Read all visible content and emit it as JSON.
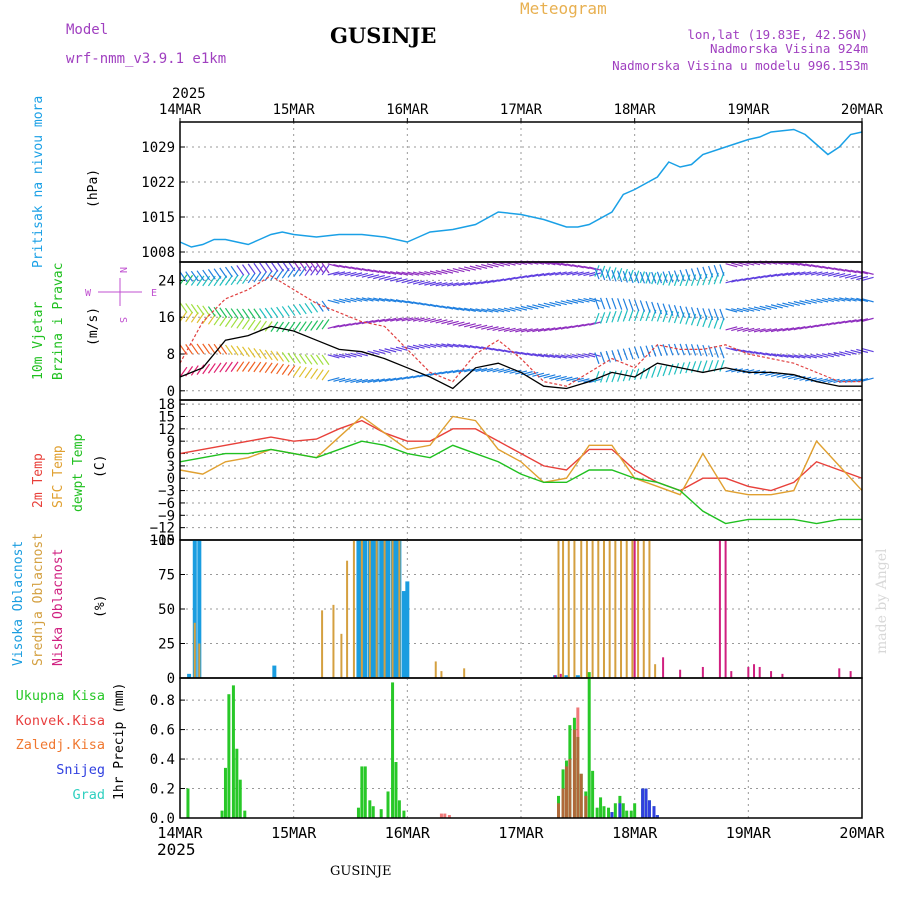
{
  "header": {
    "model_label": "Model",
    "model_name": "wrf-nmm_v3.9.1 e1km",
    "station": "GUSINJE",
    "product": "Meteogram",
    "coords": "lon,lat (19.83E, 42.56N)",
    "elevation": "Nadmorska Visina 924m",
    "model_elevation": "Nadmorska Visina u modelu 996.153m",
    "year": "2025",
    "footer_station": "GUSINJE",
    "watermark": "made by Angel"
  },
  "colors": {
    "pressure": "#1aa0e6",
    "temp2m": "#e8403a",
    "sfc": "#e0a030",
    "dewpt": "#20c020",
    "high_cloud": "#1a9de0",
    "mid_cloud": "#d4a040",
    "low_cloud": "#d02080",
    "total_precip": "#28c828",
    "conv_precip": "#e84040",
    "frz_precip": "#f07830",
    "snow": "#3040e0",
    "graupel": "#30d0c0"
  },
  "time_axis": {
    "labels": [
      "14MAR",
      "15MAR",
      "16MAR",
      "17MAR",
      "18MAR",
      "19MAR",
      "20MAR"
    ]
  },
  "panels": {
    "pressure": {
      "label": "Pritisak na nivou mora",
      "unit": "(hPa)"
    },
    "wind": {
      "label1": "10m Vjetar",
      "label2": "Brzina i Pravac",
      "unit": "(m/s)",
      "compass_n": "N",
      "compass_s": "S",
      "compass_w": "W",
      "compass_e": "E"
    },
    "temperature": {
      "label1": "2m Temp",
      "label2": "SFC Temp",
      "label3": "dewpt Temp",
      "unit": "(C)"
    },
    "cloud": {
      "label1": "Visoka Oblacnost",
      "label2": "Srednja Oblacnost",
      "label3": "Niska Oblacnost",
      "unit": "(%)"
    },
    "precip": {
      "labels": [
        "Ukupna Kisa",
        "Konvek.Kisa",
        "Zaledj.Kisa",
        "Snijeg",
        "Grad"
      ],
      "unit": "1hr Precip (mm)"
    }
  },
  "chart_data": [
    {
      "type": "line",
      "name": "pressure",
      "ylim": [
        1006,
        1034
      ],
      "ticks": [
        1008,
        1015,
        1022,
        1029
      ],
      "series": [
        {
          "x": [
            0,
            0.1,
            0.2,
            0.3,
            0.4,
            0.5,
            0.6,
            0.7,
            0.8,
            0.9,
            1.0,
            1.2,
            1.4,
            1.6,
            1.8,
            2.0,
            2.1,
            2.2,
            2.4,
            2.6,
            2.8,
            3.0,
            3.2,
            3.4,
            3.5,
            3.6,
            3.8,
            3.9,
            4.0,
            4.2,
            4.3,
            4.4,
            4.5,
            4.6,
            4.8,
            5.0,
            5.1,
            5.2,
            5.4,
            5.5,
            5.6,
            5.7,
            5.8,
            5.9,
            6.0
          ],
          "y": [
            1010,
            1009,
            1009.5,
            1010.5,
            1010.5,
            1010,
            1009.5,
            1010.5,
            1011.5,
            1012,
            1011.5,
            1011,
            1011.5,
            1011.5,
            1011,
            1010,
            1011,
            1012,
            1012.5,
            1013.5,
            1016,
            1015.5,
            1014.5,
            1013,
            1013,
            1013.5,
            1016,
            1019.5,
            1020.5,
            1023,
            1026,
            1025,
            1025.5,
            1027.5,
            1029,
            1030.5,
            1031,
            1032,
            1032.5,
            1031.5,
            1029.5,
            1027.5,
            1029,
            1031.5,
            1032
          ]
        }
      ]
    },
    {
      "type": "line",
      "name": "wind_speed",
      "ylim": [
        -2,
        28
      ],
      "ticks": [
        0,
        8,
        16,
        24
      ],
      "series": [
        {
          "name": "10m Vjetar",
          "x": [
            0.0,
            0.2,
            0.4,
            0.6,
            0.8,
            1.0,
            1.2,
            1.4,
            1.6,
            1.8,
            2.0,
            2.2,
            2.4,
            2.6,
            2.8,
            3.0,
            3.2,
            3.4,
            3.6,
            3.8,
            4.0,
            4.2,
            4.4,
            4.6,
            4.8,
            5.0,
            5.2,
            5.4,
            5.6,
            5.8,
            6.0
          ],
          "y": [
            3,
            5,
            11,
            12,
            14,
            13,
            11,
            9,
            8.5,
            7,
            5,
            3,
            0.5,
            5,
            6,
            4,
            1,
            0.5,
            2,
            4,
            3,
            6,
            5,
            4,
            5,
            4,
            4,
            3.5,
            2,
            1,
            1
          ]
        },
        {
          "name": "gust",
          "x": [
            0.0,
            0.2,
            0.4,
            0.6,
            0.8,
            1.0,
            1.2,
            1.4,
            1.6,
            1.8,
            2.0,
            2.2,
            2.4,
            2.6,
            2.8,
            3.0,
            3.2,
            3.4,
            3.6,
            3.8,
            4.0,
            4.2,
            4.4,
            4.6,
            4.8,
            5.0,
            5.2,
            5.4,
            5.6,
            5.8,
            6.0
          ],
          "y": [
            6,
            15,
            20,
            22,
            25,
            22,
            19,
            17,
            15,
            14,
            9,
            4,
            2,
            8,
            11,
            7,
            2,
            1,
            4,
            7,
            5,
            10,
            9,
            9,
            10,
            8,
            7,
            6,
            4,
            2,
            2
          ]
        }
      ]
    },
    {
      "type": "line",
      "name": "temperature",
      "ylim": [
        -15,
        19
      ],
      "ticks": [
        -15,
        -12,
        -9,
        -6,
        -3,
        0,
        3,
        6,
        9,
        12,
        15,
        18
      ],
      "series": [
        {
          "name": "2m Temp",
          "x": [
            0.0,
            0.2,
            0.4,
            0.6,
            0.8,
            1.0,
            1.2,
            1.4,
            1.6,
            1.8,
            2.0,
            2.2,
            2.4,
            2.6,
            2.8,
            3.0,
            3.2,
            3.4,
            3.6,
            3.8,
            4.0,
            4.2,
            4.4,
            4.6,
            4.8,
            5.0,
            5.2,
            5.4,
            5.6,
            5.8,
            6.0
          ],
          "y": [
            6,
            7,
            8,
            9,
            10,
            9,
            9.5,
            12,
            14,
            11,
            9,
            9,
            12,
            12,
            9,
            6,
            3,
            2,
            7,
            7,
            2,
            -1,
            -3,
            0,
            0,
            -2,
            -3,
            -1,
            4,
            2,
            0
          ]
        },
        {
          "name": "SFC Temp",
          "x": [
            0.0,
            0.2,
            0.4,
            0.6,
            0.8,
            1.0,
            1.2,
            1.4,
            1.6,
            1.8,
            2.0,
            2.2,
            2.4,
            2.6,
            2.8,
            3.0,
            3.2,
            3.4,
            3.6,
            3.8,
            4.0,
            4.2,
            4.4,
            4.6,
            4.8,
            5.0,
            5.2,
            5.4,
            5.6,
            5.8,
            6.0
          ],
          "y": [
            2,
            1,
            4,
            5,
            7,
            6,
            5,
            10,
            15,
            11,
            7,
            8,
            15,
            14,
            7,
            4,
            -1,
            0,
            8,
            8,
            0,
            -2,
            -4,
            6,
            -3,
            -4,
            -4,
            -3,
            9,
            3,
            -3
          ]
        },
        {
          "name": "dewpt Temp",
          "x": [
            0.0,
            0.2,
            0.4,
            0.6,
            0.8,
            1.0,
            1.2,
            1.4,
            1.6,
            1.8,
            2.0,
            2.2,
            2.4,
            2.6,
            2.8,
            3.0,
            3.2,
            3.4,
            3.6,
            3.8,
            4.0,
            4.2,
            4.4,
            4.6,
            4.8,
            5.0,
            5.2,
            5.4,
            5.6,
            5.8,
            6.0
          ],
          "y": [
            4,
            5,
            6,
            6,
            7,
            6,
            5,
            7,
            9,
            8,
            6,
            5,
            8,
            6,
            4,
            1,
            -1,
            -1,
            2,
            2,
            0,
            -1,
            -3,
            -8,
            -11,
            -10,
            -10,
            -10,
            -11,
            -10,
            -10
          ]
        }
      ]
    },
    {
      "type": "bar",
      "name": "cloud_cover",
      "ylim": [
        0,
        100
      ],
      "ticks": [
        0,
        25,
        50,
        75,
        100
      ],
      "series": [
        {
          "name": "Visoka Oblacnost",
          "x": [
            0.08,
            0.13,
            0.17,
            0.83,
            1.57,
            1.6,
            1.63,
            1.67,
            1.7,
            1.73,
            1.77,
            1.8,
            1.83,
            1.87,
            1.9,
            1.93,
            1.97,
            2.0,
            2.03,
            3.3,
            3.4,
            3.5
          ],
          "y": [
            3,
            100,
            100,
            9,
            100,
            100,
            100,
            100,
            100,
            100,
            100,
            100,
            100,
            100,
            100,
            100,
            63,
            70,
            0,
            2,
            2,
            2
          ]
        },
        {
          "name": "Srednja Oblacnost",
          "x": [
            0.13,
            0.17,
            1.25,
            1.35,
            1.42,
            1.47,
            1.53,
            1.6,
            1.67,
            1.73,
            1.8,
            1.87,
            1.93,
            2.25,
            2.3,
            2.5,
            3.33,
            3.37,
            3.42,
            3.47,
            3.53,
            3.58,
            3.63,
            3.68,
            3.73,
            3.78,
            3.83,
            3.88,
            3.93,
            3.98,
            4.03,
            4.08,
            4.13,
            4.18
          ],
          "y": [
            40,
            25,
            49,
            53,
            32,
            85,
            100,
            100,
            100,
            100,
            100,
            100,
            100,
            12,
            5,
            7,
            100,
            100,
            100,
            100,
            100,
            100,
            100,
            100,
            100,
            100,
            100,
            100,
            100,
            100,
            100,
            100,
            100,
            10
          ]
        },
        {
          "name": "Niska Oblacnost",
          "x": [
            3.3,
            3.35,
            4.0,
            4.25,
            4.4,
            4.6,
            4.75,
            4.8,
            4.85,
            5.0,
            5.05,
            5.1,
            5.2,
            5.3,
            5.8,
            5.9
          ],
          "y": [
            2,
            3,
            100,
            15,
            6,
            8,
            100,
            100,
            5,
            8,
            10,
            8,
            5,
            3,
            7,
            5
          ]
        }
      ]
    },
    {
      "type": "bar",
      "name": "precipitation",
      "ylim": [
        0,
        0.95
      ],
      "ticks": [
        0.0,
        0.2,
        0.4,
        0.6,
        0.8
      ],
      "series": [
        {
          "name": "Ukupna Kisa",
          "x": [
            0.07,
            0.37,
            0.4,
            0.43,
            0.47,
            0.5,
            0.53,
            0.57,
            1.57,
            1.6,
            1.63,
            1.67,
            1.7,
            1.77,
            1.83,
            1.87,
            1.9,
            1.93,
            1.97,
            3.33,
            3.37,
            3.4,
            3.43,
            3.47,
            3.5,
            3.53,
            3.57,
            3.6,
            3.63,
            3.67,
            3.7,
            3.73,
            3.77,
            3.8,
            3.83,
            3.87,
            3.9,
            3.93,
            3.97,
            4.0,
            4.07,
            4.1,
            4.13,
            4.17,
            4.2
          ],
          "y": [
            0.2,
            0.05,
            0.34,
            0.84,
            0.9,
            0.47,
            0.26,
            0.05,
            0.07,
            0.35,
            0.35,
            0.12,
            0.08,
            0.06,
            0.18,
            0.92,
            0.38,
            0.12,
            0.05,
            0.15,
            0.33,
            0.39,
            0.63,
            0.68,
            0.55,
            0.3,
            0.18,
            0.99,
            0.32,
            0.07,
            0.14,
            0.08,
            0.07,
            0.04,
            0.1,
            0.15,
            0.1,
            0.05,
            0.05,
            0.1,
            0.2,
            0.2,
            0.12,
            0.08,
            0.02
          ]
        },
        {
          "name": "Konvek.Kisa",
          "x": [
            2.3,
            2.33,
            2.37,
            3.33,
            3.37,
            3.4,
            3.43,
            3.47,
            3.5,
            3.53,
            3.57
          ],
          "y": [
            0.03,
            0.03,
            0.02,
            0.1,
            0.2,
            0.35,
            0.4,
            0.6,
            0.75,
            0.3,
            0.15
          ]
        },
        {
          "name": "Snijeg",
          "x": [
            3.8,
            3.87,
            4.07,
            4.1,
            4.13,
            4.17,
            4.2
          ],
          "y": [
            0.04,
            0.1,
            0.2,
            0.2,
            0.12,
            0.08,
            0.02
          ]
        }
      ]
    }
  ]
}
